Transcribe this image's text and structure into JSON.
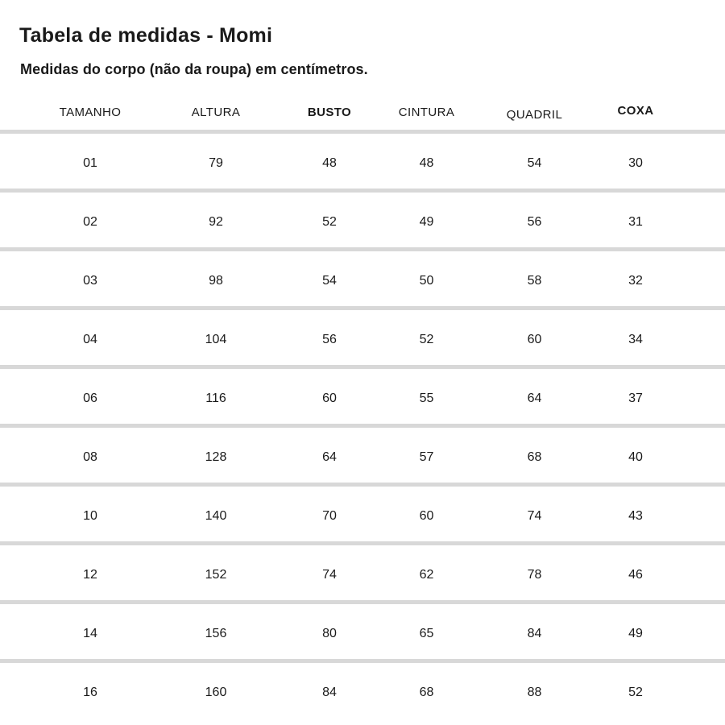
{
  "page": {
    "title": "Tabela de medidas - Momi",
    "subtitle": "Medidas do corpo (não da roupa) em centímetros."
  },
  "chart_data": {
    "type": "table",
    "title": "Tabela de medidas - Momi",
    "subtitle": "Medidas do corpo (não da roupa) em centímetros.",
    "columns": [
      "TAMANHO",
      "ALTURA",
      "BUSTO",
      "CINTURA",
      "QUADRIL",
      "COXA"
    ],
    "bold_columns": [
      "BUSTO",
      "COXA"
    ],
    "rows": [
      [
        "01",
        "79",
        "48",
        "48",
        "54",
        "30"
      ],
      [
        "02",
        "92",
        "52",
        "49",
        "56",
        "31"
      ],
      [
        "03",
        "98",
        "54",
        "50",
        "58",
        "32"
      ],
      [
        "04",
        "104",
        "56",
        "52",
        "60",
        "34"
      ],
      [
        "06",
        "116",
        "60",
        "55",
        "64",
        "37"
      ],
      [
        "08",
        "128",
        "64",
        "57",
        "68",
        "40"
      ],
      [
        "10",
        "140",
        "70",
        "60",
        "74",
        "43"
      ],
      [
        "12",
        "152",
        "74",
        "62",
        "78",
        "46"
      ],
      [
        "14",
        "156",
        "80",
        "65",
        "84",
        "49"
      ],
      [
        "16",
        "160",
        "84",
        "68",
        "88",
        "52"
      ]
    ]
  },
  "colors": {
    "text": "#1a1a1a",
    "divider": "#d8d8d8",
    "background": "#ffffff"
  }
}
